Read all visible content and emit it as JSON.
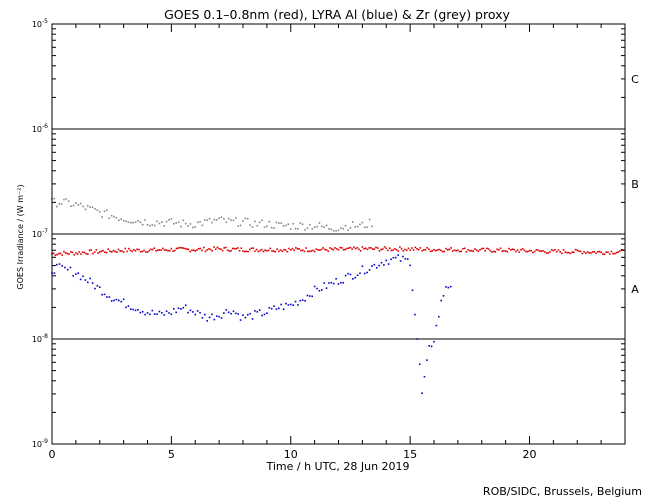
{
  "chart_data": {
    "type": "scatter",
    "title": "GOES 0.1–0.8nm (red), LYRA Al (blue) & Zr (grey) proxy",
    "xlabel": "Time / h UTC, 28 Jun 2019",
    "ylabel": "GOES Irradiance / (W m⁻²)",
    "xlim": [
      0,
      24
    ],
    "ylim": [
      1e-09,
      1e-05
    ],
    "yscale": "log",
    "x_ticks": [
      0,
      5,
      10,
      15,
      20
    ],
    "x_tick_labels": [
      "0",
      "5",
      "10",
      "15",
      "20"
    ],
    "y_ticks": [
      1e-09,
      1e-08,
      1e-07,
      1e-06,
      1e-05
    ],
    "y_tick_labels": [
      {
        "base": "10",
        "exp": "-9"
      },
      {
        "base": "10",
        "exp": "-8"
      },
      {
        "base": "10",
        "exp": "-7"
      },
      {
        "base": "10",
        "exp": "-6"
      },
      {
        "base": "10",
        "exp": "-5"
      }
    ],
    "flare_levels": [
      {
        "label": "A",
        "y": 3e-08
      },
      {
        "label": "B",
        "y": 3e-07
      },
      {
        "label": "C",
        "y": 3e-06
      }
    ],
    "threshold_lines": [
      1e-08,
      1e-07,
      1e-06
    ],
    "series": [
      {
        "name": "GOES 0.1–0.8nm",
        "color": "#dd0000",
        "x": [
          0,
          1,
          2,
          3,
          4,
          5,
          6,
          7,
          8,
          9,
          10,
          11,
          12,
          13,
          14,
          15,
          16,
          17,
          18,
          19,
          20,
          21,
          22,
          23,
          24
        ],
        "y": [
          6.5e-08,
          6.6e-08,
          6.8e-08,
          7e-08,
          7e-08,
          7.1e-08,
          7.1e-08,
          7.2e-08,
          7.1e-08,
          7.1e-08,
          7.1e-08,
          7.1e-08,
          7.1e-08,
          7.2e-08,
          7.2e-08,
          7.2e-08,
          7.1e-08,
          7.1e-08,
          7e-08,
          7e-08,
          6.9e-08,
          6.8e-08,
          6.8e-08,
          6.7e-08,
          6.8e-08
        ]
      },
      {
        "name": "LYRA Al proxy",
        "color": "#0000cc",
        "x": [
          0,
          0.2,
          1,
          1.5,
          2,
          2.5,
          3,
          3.5,
          4,
          4.5,
          5,
          5.5,
          6,
          6.5,
          7,
          7.5,
          8,
          8.5,
          9,
          9.5,
          10,
          10.5,
          11,
          11.5,
          12,
          12.5,
          13,
          13.5,
          14,
          14.5,
          15,
          15.3,
          15.5,
          15.8,
          16,
          16.3,
          16.5,
          16.8
        ],
        "y": [
          4.5e-08,
          4.8e-08,
          4.3e-08,
          3.6e-08,
          3e-08,
          2.5e-08,
          2.2e-08,
          2e-08,
          1.8e-08,
          1.7e-08,
          1.8e-08,
          2e-08,
          1.8e-08,
          1.6e-08,
          1.7e-08,
          1.9e-08,
          1.6e-08,
          1.7e-08,
          1.8e-08,
          2e-08,
          2.1e-08,
          2.4e-08,
          2.9e-08,
          3.2e-08,
          3.6e-08,
          4e-08,
          4.5e-08,
          5e-08,
          5.6e-08,
          5.8e-08,
          5.5e-08,
          1e-08,
          3e-09,
          8e-09,
          1e-08,
          2.2e-08,
          3.2e-08,
          3.3e-08
        ]
      },
      {
        "name": "LYRA Zr proxy",
        "color": "#888888",
        "x": [
          0,
          0.5,
          1,
          1.5,
          2,
          2.5,
          3,
          3.5,
          4,
          4.5,
          5,
          5.5,
          6,
          6.5,
          7,
          7.5,
          8,
          8.5,
          9,
          9.5,
          10,
          10.5,
          11,
          11.5,
          12,
          12.5,
          13,
          13.5
        ],
        "y": [
          2e-07,
          2e-07,
          1.9e-07,
          1.75e-07,
          1.6e-07,
          1.5e-07,
          1.4e-07,
          1.35e-07,
          1.3e-07,
          1.3e-07,
          1.28e-07,
          1.25e-07,
          1.25e-07,
          1.3e-07,
          1.35e-07,
          1.3e-07,
          1.3e-07,
          1.25e-07,
          1.25e-07,
          1.2e-07,
          1.2e-07,
          1.2e-07,
          1.2e-07,
          1.15e-07,
          1.15e-07,
          1.2e-07,
          1.2e-07,
          1.3e-07
        ]
      }
    ]
  },
  "footer": {
    "credit": "ROB/SIDC, Brussels, Belgium"
  }
}
